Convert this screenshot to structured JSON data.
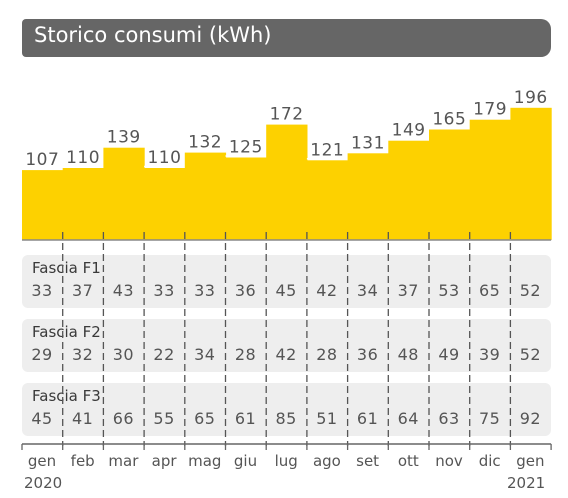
{
  "title": "Storico consumi (kWh)",
  "colors": {
    "bar": "#fdd100",
    "title_bg": "#666666",
    "panel_bg": "#eeeeee",
    "text": "#555555"
  },
  "chart_data": {
    "type": "bar",
    "categories": [
      "gen",
      "feb",
      "mar",
      "apr",
      "mag",
      "giu",
      "lug",
      "ago",
      "set",
      "ott",
      "nov",
      "dic",
      "gen"
    ],
    "values": [
      107,
      110,
      139,
      110,
      132,
      125,
      172,
      121,
      131,
      149,
      165,
      179,
      196
    ],
    "year_labels": {
      "first": "2020",
      "last": "2021"
    },
    "title": "Storico consumi (kWh)",
    "ylim": [
      0,
      200
    ],
    "grid": false
  },
  "fasce": [
    {
      "label": "Fascia F1",
      "values": [
        33,
        37,
        43,
        33,
        33,
        36,
        45,
        42,
        34,
        37,
        53,
        65,
        52
      ]
    },
    {
      "label": "Fascia F2",
      "values": [
        29,
        32,
        30,
        22,
        34,
        28,
        42,
        28,
        36,
        48,
        49,
        39,
        52
      ]
    },
    {
      "label": "Fascia F3",
      "values": [
        45,
        41,
        66,
        55,
        65,
        61,
        85,
        51,
        61,
        64,
        63,
        75,
        92
      ]
    }
  ]
}
